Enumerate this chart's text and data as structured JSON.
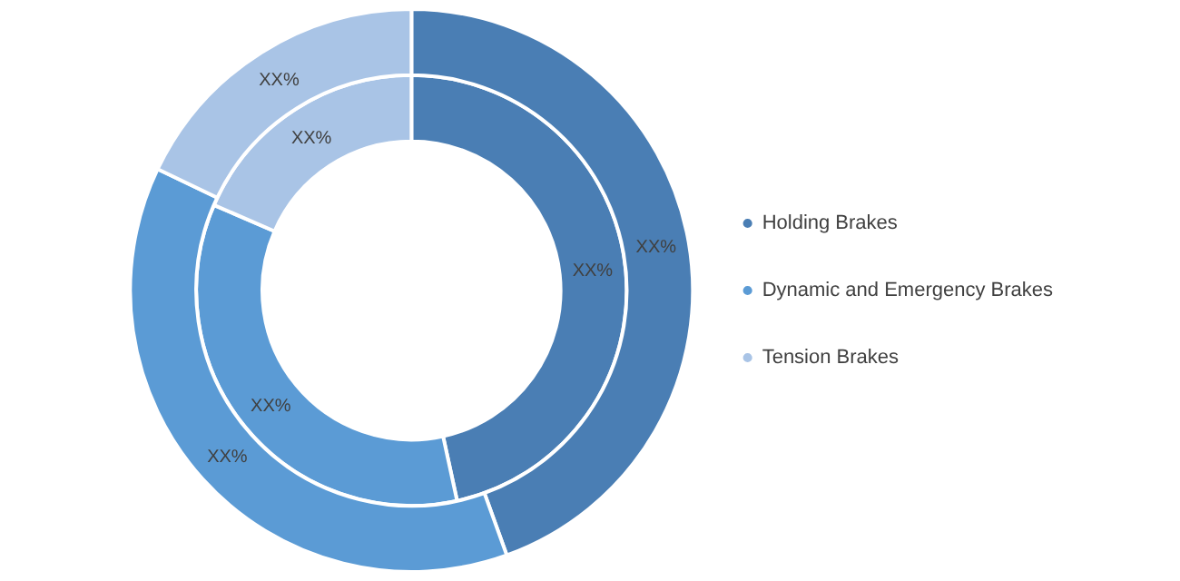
{
  "chart_data": {
    "type": "donut",
    "categories": [
      "Holding Brakes",
      "Dynamic and Emergency Brakes",
      "Tension Brakes"
    ],
    "colors": [
      "#4a7eb4",
      "#5b9bd5",
      "#a9c4e6"
    ],
    "series": [
      {
        "values": [
          44.5,
          37.6,
          17.9
        ],
        "value_labels": [
          "XX%",
          "XX%",
          "XX%"
        ]
      },
      {
        "values": [
          46.6,
          34.9,
          18.5
        ],
        "value_labels": [
          "XX%",
          "XX%",
          "XX%"
        ]
      }
    ],
    "legend": "right"
  }
}
